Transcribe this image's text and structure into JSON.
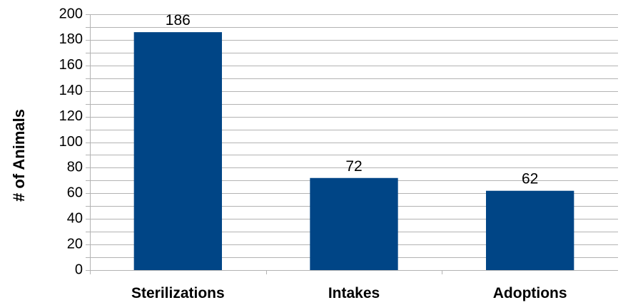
{
  "chart_data": {
    "type": "bar",
    "categories": [
      "Sterilizations",
      "Intakes",
      "Adoptions"
    ],
    "values": [
      186,
      72,
      62
    ],
    "data_labels": [
      "186",
      "72",
      "62"
    ],
    "ylabel": "# of Animals",
    "xlabel": "",
    "title": "",
    "ylim": [
      0,
      200
    ],
    "y_tick_step": 20,
    "y_minor_step": 10,
    "grid": true,
    "legend": "none",
    "bar_color": "#004586"
  }
}
